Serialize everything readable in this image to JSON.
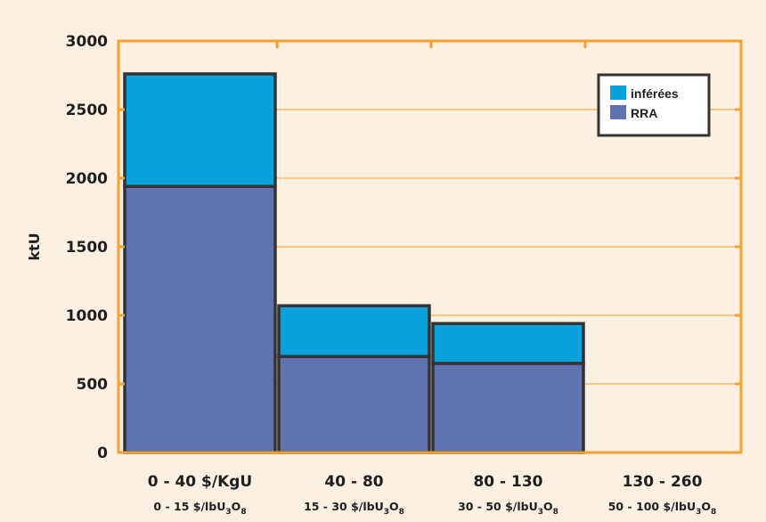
{
  "colors": {
    "background": "#fdf0e1",
    "plot_frame": "#f6a030",
    "gridline": "#f6b04a",
    "inferees": "#0aa2dd",
    "rra": "#6172b0",
    "bar_border": "#333333"
  },
  "chart_data": {
    "type": "bar",
    "stacked": true,
    "bar_gap": 0,
    "ylabel": "ktU",
    "ylim": [
      0,
      3000
    ],
    "yticks": [
      "0",
      "500",
      "1000",
      "1500",
      "2000",
      "2500",
      "3000"
    ],
    "categories": [
      {
        "label": "0 - 40 $/KgU",
        "sub_prefix": "0 - 15 $/lbU",
        "sub_a": "3",
        "sub_mid": "O",
        "sub_b": "8"
      },
      {
        "label": "40 - 80",
        "sub_prefix": "15 - 30 $/lbU",
        "sub_a": "3",
        "sub_mid": "O",
        "sub_b": "8"
      },
      {
        "label": "80 - 130",
        "sub_prefix": "30 - 50 $/lbU",
        "sub_a": "3",
        "sub_mid": "O",
        "sub_b": "8"
      },
      {
        "label": "130 - 260",
        "sub_prefix": "50 - 100 $/lbU",
        "sub_a": "3",
        "sub_mid": "O",
        "sub_b": "8"
      }
    ],
    "series": [
      {
        "name": "RRA",
        "color": "#6172b0",
        "values": [
          1940,
          700,
          650,
          0
        ]
      },
      {
        "name": "inférées",
        "color": "#0aa2dd",
        "values": [
          820,
          370,
          290,
          0
        ]
      }
    ],
    "legend": {
      "position": "top-right",
      "entries": [
        "inférées",
        "RRA"
      ]
    },
    "grid": true
  }
}
